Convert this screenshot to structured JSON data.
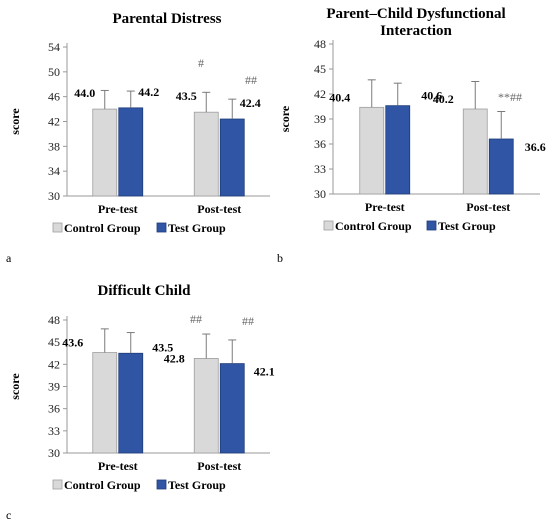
{
  "colors": {
    "control": "#d9d9d9",
    "test": "#2f55a4",
    "control_edge": "#9e9e9e",
    "test_edge": "#1f3c7a"
  },
  "chart_data": [
    {
      "type": "bar",
      "panel": "a",
      "title_lines": [
        "Parental Distress"
      ],
      "ylabel": "score",
      "categories": [
        "Pre-test",
        "Post-test"
      ],
      "ylim": [
        30,
        54
      ],
      "yticks": [
        "30",
        "34",
        "38",
        "42",
        "46",
        "50",
        "54"
      ],
      "series": [
        {
          "name": "Control Group",
          "values": [
            44.0,
            43.5
          ],
          "errors": [
            3.0,
            3.2
          ],
          "labels": [
            "44.0",
            "43.5"
          ],
          "sig": [
            "",
            "#"
          ]
        },
        {
          "name": "Test Group",
          "values": [
            44.2,
            42.4
          ],
          "errors": [
            2.7,
            3.2
          ],
          "labels": [
            "44.2",
            "42.4"
          ],
          "sig": [
            "",
            "##"
          ]
        }
      ],
      "legend_position": "bottom"
    },
    {
      "type": "bar",
      "panel": "b",
      "title_lines": [
        "Parent–Child Dysfunctional",
        "Interaction"
      ],
      "ylabel": "score",
      "categories": [
        "Pre-test",
        "Post-test"
      ],
      "ylim": [
        30,
        48
      ],
      "yticks": [
        "30",
        "33",
        "36",
        "39",
        "42",
        "45",
        "48"
      ],
      "series": [
        {
          "name": "Control Group",
          "values": [
            40.4,
            40.2
          ],
          "errors": [
            3.3,
            3.3
          ],
          "labels": [
            "40.4",
            "40.2"
          ],
          "sig": [
            "",
            ""
          ]
        },
        {
          "name": "Test Group",
          "values": [
            40.6,
            36.6
          ],
          "errors": [
            2.7,
            3.3
          ],
          "labels": [
            "40.6",
            "36.6"
          ],
          "sig": [
            "",
            "**##"
          ]
        }
      ],
      "legend_position": "bottom"
    },
    {
      "type": "bar",
      "panel": "c",
      "title_lines": [
        "Difficult Child"
      ],
      "ylabel": "score",
      "categories": [
        "Pre-test",
        "Post-test"
      ],
      "ylim": [
        30,
        48
      ],
      "yticks": [
        "30",
        "33",
        "36",
        "39",
        "42",
        "45",
        "48"
      ],
      "series": [
        {
          "name": "Control Group",
          "values": [
            43.6,
            42.8
          ],
          "errors": [
            3.2,
            3.3
          ],
          "labels": [
            "43.6",
            "42.8"
          ],
          "sig": [
            "",
            "##"
          ]
        },
        {
          "name": "Test Group",
          "values": [
            43.5,
            42.1
          ],
          "errors": [
            2.8,
            3.2
          ],
          "labels": [
            "43.5",
            "42.1"
          ],
          "sig": [
            "",
            "##"
          ]
        }
      ],
      "legend_position": "bottom"
    }
  ]
}
